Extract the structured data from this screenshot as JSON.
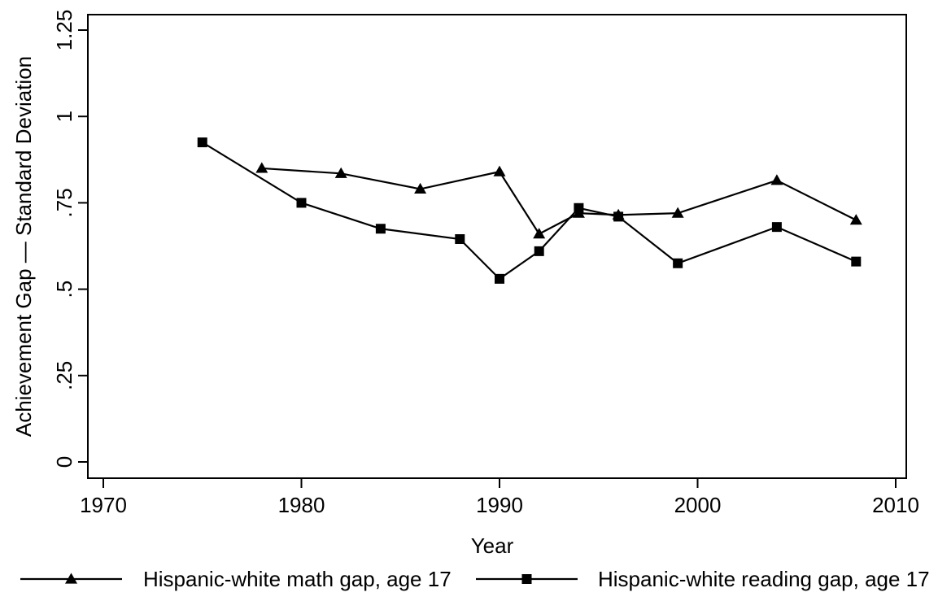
{
  "chart_data": {
    "type": "line",
    "title": "",
    "xlabel": "Year",
    "ylabel": "Achievement Gap — Standard Deviation",
    "xlim": [
      1970,
      2010
    ],
    "ylim": [
      0,
      1.25
    ],
    "x_ticks": [
      {
        "value": 1970,
        "label": "1970"
      },
      {
        "value": 1980,
        "label": "1980"
      },
      {
        "value": 1990,
        "label": "1990"
      },
      {
        "value": 2000,
        "label": "2000"
      },
      {
        "value": 2010,
        "label": "2010"
      }
    ],
    "y_ticks": [
      {
        "value": 0,
        "label": "0"
      },
      {
        "value": 0.25,
        "label": ".25"
      },
      {
        "value": 0.5,
        "label": ".5"
      },
      {
        "value": 0.75,
        "label": ".75"
      },
      {
        "value": 1,
        "label": "1"
      },
      {
        "value": 1.25,
        "label": "1.25"
      }
    ],
    "grid": false,
    "legend_position": "bottom",
    "series": [
      {
        "name": "Hispanic-white math gap, age 17",
        "marker": "triangle",
        "color": "#000000",
        "x": [
          1978,
          1982,
          1986,
          1990,
          1992,
          1994,
          1996,
          1999,
          2004,
          2008
        ],
        "values": [
          0.85,
          0.835,
          0.79,
          0.84,
          0.66,
          0.72,
          0.715,
          0.72,
          0.815,
          0.7
        ]
      },
      {
        "name": "Hispanic-white reading gap, age 17",
        "marker": "square",
        "color": "#000000",
        "x": [
          1975,
          1980,
          1984,
          1988,
          1990,
          1992,
          1994,
          1996,
          1999,
          2004,
          2008
        ],
        "values": [
          0.925,
          0.75,
          0.675,
          0.645,
          0.53,
          0.61,
          0.735,
          0.71,
          0.575,
          0.68,
          0.58
        ]
      }
    ]
  }
}
